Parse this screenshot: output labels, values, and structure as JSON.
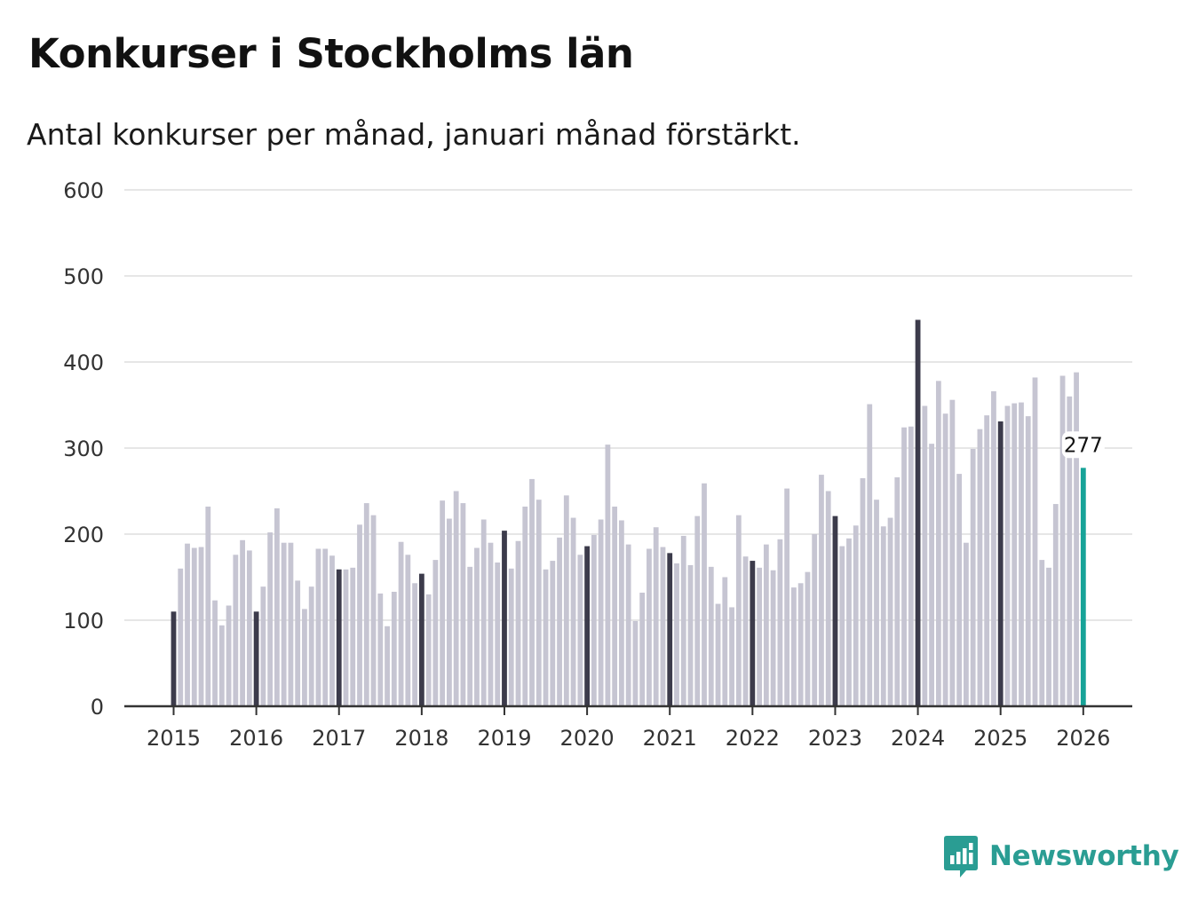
{
  "title": "Konkurser i Stockholms län",
  "subtitle": "Antal konkurser per månad, januari månad förstärkt.",
  "brand": {
    "name": "Newsworthy",
    "icon": "bar-chart-speech-bubble-icon",
    "color": "#2a9d93"
  },
  "chart_data": {
    "type": "bar",
    "title": "Konkurser i Stockholms län",
    "subtitle": "Antal konkurser per månad, januari månad förstärkt.",
    "xlabel": "",
    "ylabel": "",
    "ylim": [
      0,
      600
    ],
    "yticks": [
      0,
      100,
      200,
      300,
      400,
      500,
      600
    ],
    "xticks": [
      "2015",
      "2016",
      "2017",
      "2018",
      "2019",
      "2020",
      "2021",
      "2022",
      "2023",
      "2024",
      "2025",
      "2026"
    ],
    "start": "2015-01",
    "grid": true,
    "colors": {
      "january": "#3c3b4b",
      "other": "#c6c5d2",
      "latest": "#17a398",
      "grid": "#dddddd",
      "axis": "#333333"
    },
    "values": [
      110,
      160,
      189,
      184,
      185,
      232,
      123,
      94,
      117,
      176,
      193,
      181,
      110,
      139,
      202,
      230,
      190,
      190,
      146,
      113,
      139,
      183,
      183,
      175,
      159,
      159,
      161,
      211,
      236,
      222,
      131,
      93,
      133,
      191,
      176,
      143,
      154,
      130,
      170,
      239,
      218,
      250,
      236,
      162,
      184,
      217,
      190,
      167,
      204,
      160,
      192,
      232,
      264,
      240,
      159,
      169,
      196,
      245,
      219,
      176,
      186,
      199,
      217,
      304,
      232,
      216,
      188,
      99,
      132,
      183,
      208,
      185,
      178,
      166,
      198,
      164,
      221,
      259,
      162,
      119,
      150,
      115,
      222,
      174,
      169,
      161,
      188,
      158,
      194,
      253,
      138,
      143,
      156,
      200,
      269,
      250,
      221,
      186,
      195,
      210,
      265,
      351,
      240,
      209,
      219,
      266,
      324,
      325,
      449,
      349,
      305,
      378,
      340,
      356,
      270,
      190,
      299,
      322,
      338,
      366,
      331,
      349,
      352,
      353,
      337,
      382,
      170,
      161,
      235,
      384,
      360,
      388,
      277
    ],
    "latest_label": "277"
  }
}
